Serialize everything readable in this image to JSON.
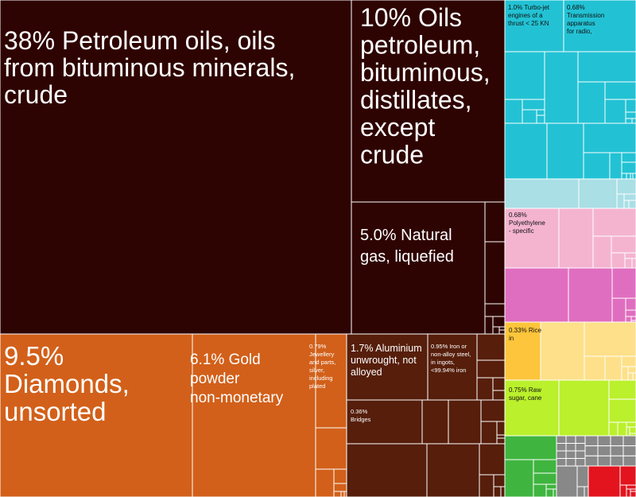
{
  "chart_data": {
    "type": "treemap",
    "unit": "percent of total exports",
    "labels": {
      "crude": "38% Petroleum oils, oils from bituminous minerals, crude",
      "refined": "10% Oils petroleum, bituminous, distillates, except crude",
      "lng": "5.0% Natural gas, liquefied",
      "diamonds": "9.5% Diamonds, unsorted",
      "gold": "6.1% Gold powder non-monetary",
      "jewellery": "0.79% Jewellery and parts, silver, including plated",
      "aluminium": "1.7% Aluminium unwrought, not alloyed",
      "iron": "0.95% Iron or non-alloy steel, in ingots, <99.94% iron",
      "bridges": "0.36% Bridges",
      "turbojet": "1.0% Turbo-jet engines of a thrust < 25 KN",
      "radio": "0.68% Transmission apparatus for radio,",
      "polyethylene": "0.68% Polyethylene - specific",
      "rice": "0.33% Rice in",
      "sugar": "0.75% Raw sugar, cane"
    },
    "items": [
      {
        "key": "crude",
        "value": 38
      },
      {
        "key": "refined",
        "value": 10
      },
      {
        "key": "lng",
        "value": 5.0
      },
      {
        "key": "diamonds",
        "value": 9.5
      },
      {
        "key": "gold",
        "value": 6.1
      },
      {
        "key": "jewellery",
        "value": 0.79
      },
      {
        "key": "aluminium",
        "value": 1.7
      },
      {
        "key": "iron",
        "value": 0.95
      },
      {
        "key": "bridges",
        "value": 0.36
      },
      {
        "key": "turbojet",
        "value": 1.0
      },
      {
        "key": "radio",
        "value": 0.68
      },
      {
        "key": "polyethylene",
        "value": 0.68
      },
      {
        "key": "rice",
        "value": 0.33
      },
      {
        "key": "sugar",
        "value": 0.75
      }
    ],
    "colors": {
      "mineral": "#2e0402",
      "precious": "#d2601a",
      "metal": "#561e0b",
      "machinery": "#22c2d4",
      "machinery_light": "#a9dfe5",
      "plastics": "#f4b4d0",
      "chemicals": "#e06ec0",
      "vegetable": "#fdc53b",
      "vegetable_light": "#fde089",
      "food": "#bbf02c",
      "green": "#3fb53f",
      "grey": "#888888",
      "red": "#e3141e",
      "border": "#ffffff"
    }
  }
}
